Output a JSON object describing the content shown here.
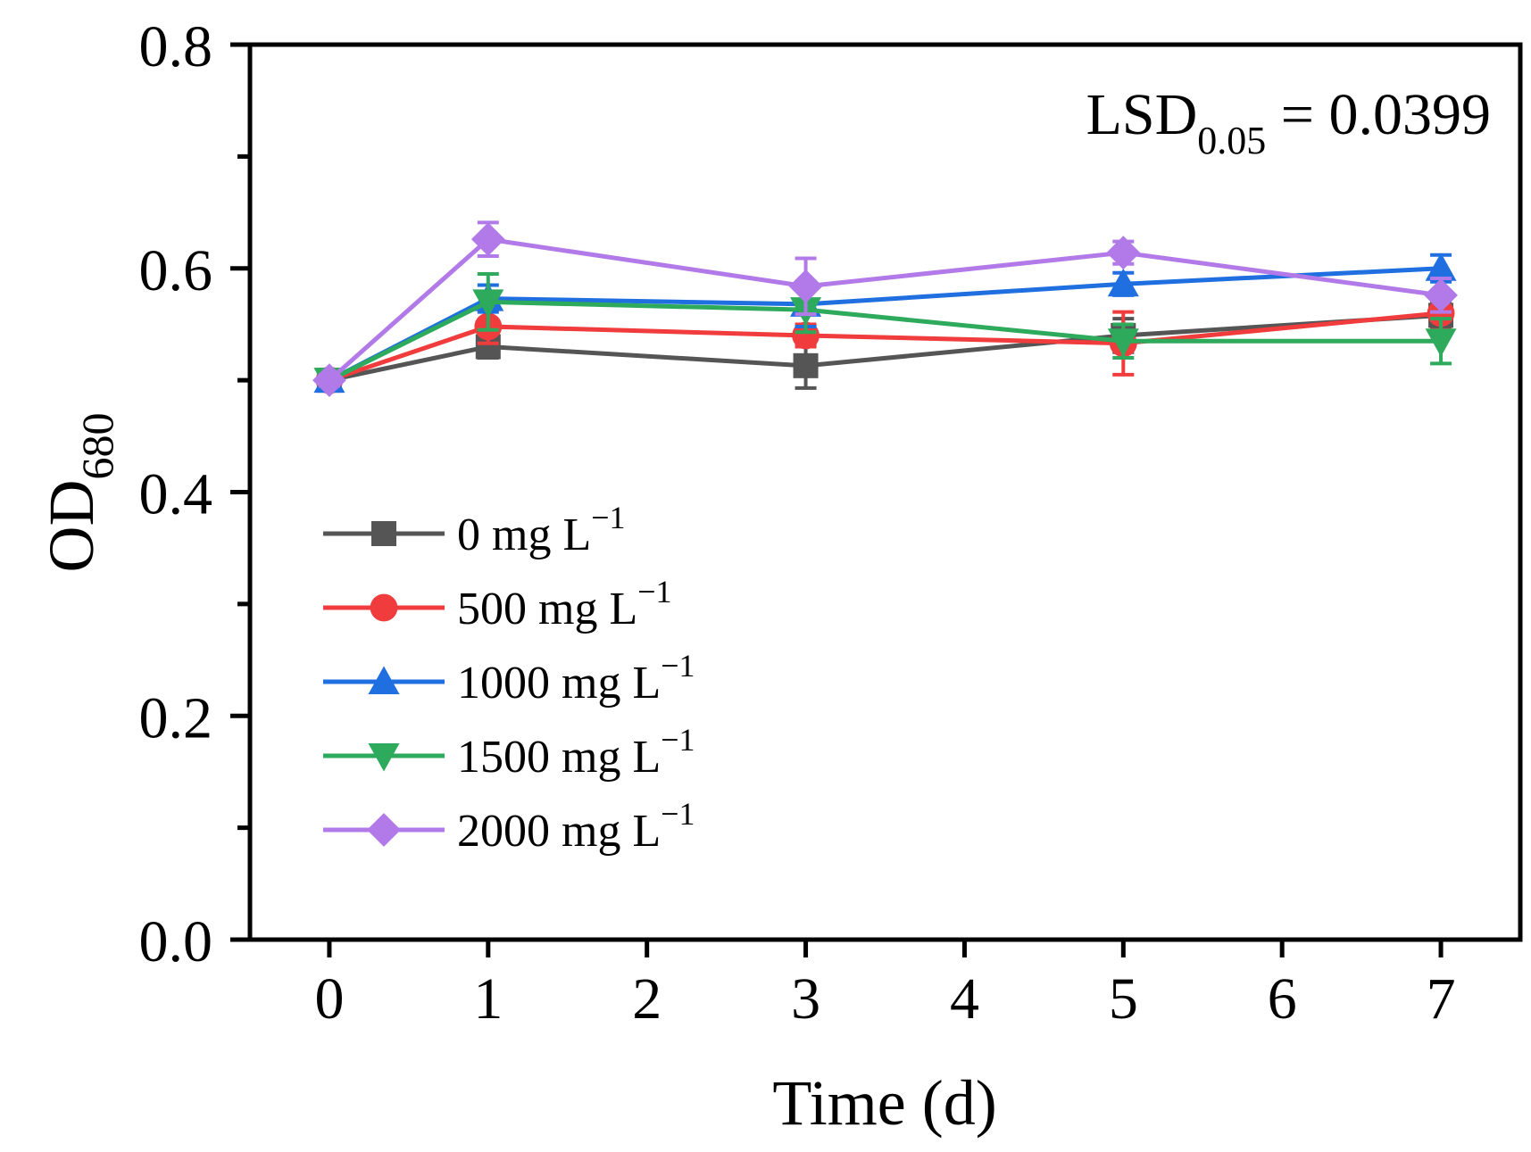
{
  "chart_data": {
    "type": "line",
    "title": "",
    "xlabel": "Time (d)",
    "ylabel": {
      "base": "OD",
      "subscript": "680"
    },
    "x": [
      0,
      1,
      3,
      5,
      7
    ],
    "xlim": [
      -0.5,
      7.5
    ],
    "ylim": [
      0.0,
      0.8
    ],
    "x_ticks": [
      0,
      1,
      2,
      3,
      4,
      5,
      6,
      7
    ],
    "x_tick_labels": [
      "0",
      "1",
      "2",
      "3",
      "4",
      "5",
      "6",
      "7"
    ],
    "y_major_ticks": [
      0.0,
      0.2,
      0.4,
      0.6,
      0.8
    ],
    "y_tick_labels": [
      "0.0",
      "0.2",
      "0.4",
      "0.6",
      "0.8"
    ],
    "y_minor_ticks": [
      0.1,
      0.3,
      0.5,
      0.7
    ],
    "grid": false,
    "legend_position": "lower-left",
    "annotation": {
      "base": "LSD",
      "subscript": "0.05",
      "rest": " = 0.0399"
    },
    "series": [
      {
        "name": "0 mg L",
        "superscript": "−1",
        "color": "#555555",
        "marker": "square",
        "values": [
          0.5,
          0.53,
          0.513,
          0.54,
          0.558
        ],
        "errors": [
          0.005,
          0.01,
          0.02,
          0.015,
          0.012
        ]
      },
      {
        "name": "500 mg L",
        "superscript": "−1",
        "color": "#f03c3c",
        "marker": "circle",
        "values": [
          0.5,
          0.548,
          0.54,
          0.533,
          0.56
        ],
        "errors": [
          0.005,
          0.015,
          0.01,
          0.028,
          0.015
        ]
      },
      {
        "name": "1000 mg L",
        "superscript": "−1",
        "color": "#1f6fe0",
        "marker": "triangle-up",
        "values": [
          0.5,
          0.573,
          0.568,
          0.586,
          0.6
        ],
        "errors": [
          0.005,
          0.012,
          0.02,
          0.01,
          0.012
        ]
      },
      {
        "name": "1500 mg L",
        "superscript": "−1",
        "color": "#2eaa5c",
        "marker": "triangle-down",
        "values": [
          0.5,
          0.57,
          0.563,
          0.535,
          0.535
        ],
        "errors": [
          0.005,
          0.025,
          0.02,
          0.015,
          0.02
        ]
      },
      {
        "name": "2000 mg L",
        "superscript": "−1",
        "color": "#b27ae8",
        "marker": "diamond",
        "values": [
          0.5,
          0.626,
          0.584,
          0.614,
          0.576
        ],
        "errors": [
          0.005,
          0.015,
          0.025,
          0.01,
          0.015
        ]
      }
    ]
  }
}
